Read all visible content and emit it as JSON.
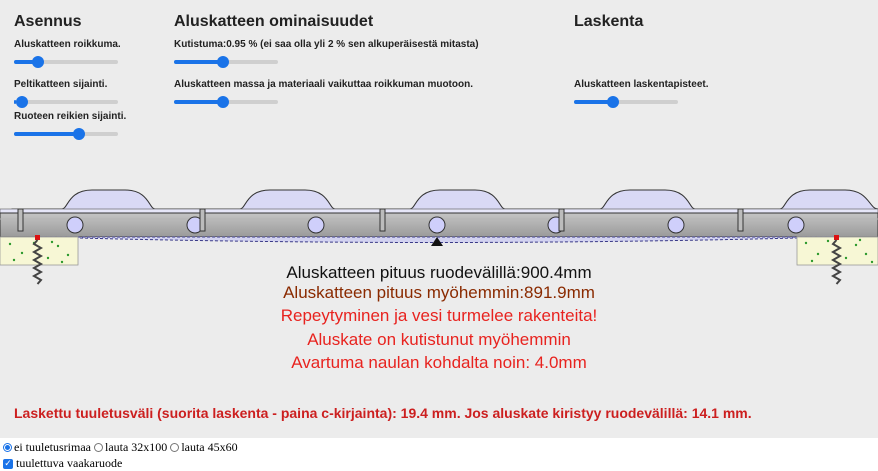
{
  "headings": {
    "asennus": "Asennus",
    "ominaisuudet": "Aluskatteen ominaisuudet",
    "laskenta": "Laskenta"
  },
  "sliders": {
    "roikkuma": {
      "label": "Aluskatteen roikkuma.",
      "value": 0.2
    },
    "peltikate": {
      "label": "Peltikatteen sijainti.",
      "value": 0.02
    },
    "ruoteen_reikien": {
      "label": "Ruoteen reikien sijainti.",
      "value": 0.64
    },
    "kutistuma": {
      "label": "Kutistuma:0.95 % (ei saa olla yli 2 % sen alkuperäisestä mitasta)",
      "value": 0.47
    },
    "massa": {
      "label": "Aluskatteen massa ja materiaali vaikuttaa roikkuman muotoon.",
      "value": 0.47
    },
    "laskentapisteet": {
      "label": "Aluskatteen laskentapisteet.",
      "value": 0.36
    }
  },
  "messages": {
    "length_now": "Aluskatteen pituus ruodevälillä:900.4mm",
    "length_later": "Aluskatteen pituus myöhemmin:891.9mm",
    "tear_warning": "Repeytyminen ja vesi turmelee rakenteita!",
    "shrunk": "Aluskate on kutistunut myöhemmin",
    "gap": "Avartuma naulan kohdalta noin: 4.0mm"
  },
  "result": "Laskettu tuuletusväli (suorita laskenta - paina c-kirjainta): 19.4 mm. Jos aluskate kiristyy ruodevälillä: 14.1 mm.",
  "options": {
    "radios": [
      {
        "label": "ei tuuletusrimaa",
        "checked": true
      },
      {
        "label": "lauta 32x100",
        "checked": false
      },
      {
        "label": "lauta 45x60",
        "checked": false
      }
    ],
    "checkbox": {
      "label": "tuulettuva vaakaruode",
      "checked": true
    }
  },
  "colors": {
    "accent": "#1a73e8",
    "panel": "#ececec",
    "warning": "#e8231f",
    "result": "#cc1f1f"
  }
}
